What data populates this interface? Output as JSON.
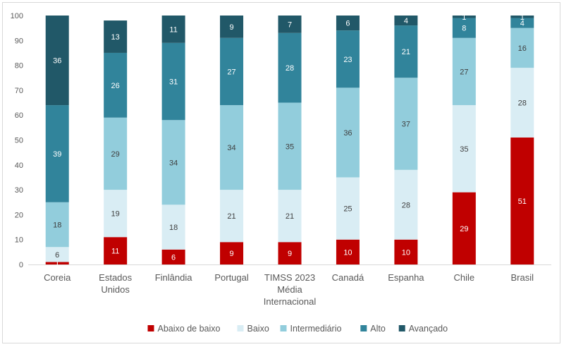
{
  "chart_data": {
    "type": "bar",
    "stacked": true,
    "categories": [
      [
        "Coreia"
      ],
      [
        "Estados",
        "Unidos"
      ],
      [
        "Finlândia"
      ],
      [
        "Portugal"
      ],
      [
        "TIMSS 2023",
        "Média",
        "Internacional"
      ],
      [
        "Canadá"
      ],
      [
        "Espanha"
      ],
      [
        "Chile"
      ],
      [
        "Brasil"
      ]
    ],
    "series": [
      {
        "name": "Abaixo de baixo",
        "color": "#c00000",
        "label_color": "#ffffff",
        "values": [
          1,
          11,
          6,
          9,
          9,
          10,
          10,
          29,
          51
        ]
      },
      {
        "name": "Baixo",
        "color": "#d9edf4",
        "label_color": "#404040",
        "values": [
          6,
          19,
          18,
          21,
          21,
          25,
          28,
          35,
          28
        ]
      },
      {
        "name": "Intermediário",
        "color": "#92cddc",
        "label_color": "#404040",
        "values": [
          18,
          29,
          34,
          34,
          35,
          36,
          37,
          27,
          16
        ]
      },
      {
        "name": "Alto",
        "color": "#31849b",
        "label_color": "#ffffff",
        "values": [
          39,
          26,
          31,
          27,
          28,
          23,
          21,
          8,
          4
        ]
      },
      {
        "name": "Avançado",
        "color": "#215868",
        "label_color": "#ffffff",
        "values": [
          36,
          13,
          11,
          9,
          7,
          6,
          4,
          1,
          1
        ]
      }
    ],
    "ylim": [
      0,
      100
    ],
    "yticks": [
      0,
      10,
      20,
      30,
      40,
      50,
      60,
      70,
      80,
      90,
      100
    ],
    "grid": false,
    "legend": "bottom"
  }
}
